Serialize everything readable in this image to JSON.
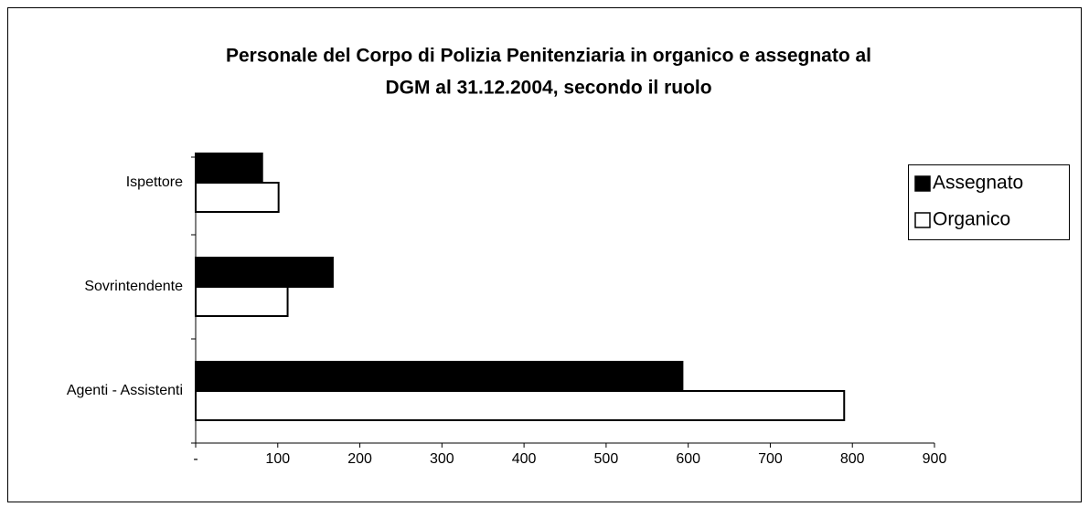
{
  "chart_data": {
    "type": "barh",
    "title": [
      "Personale del Corpo di Polizia Penitenziaria in organico e assegnato al",
      "DGM al 31.12.2004, secondo il ruolo"
    ],
    "categories": [
      "Ispettore",
      "Sovrintendente",
      "Agenti - Assistenti"
    ],
    "series": [
      {
        "name": "Assegnato",
        "color": "#000000",
        "values": [
          81,
          167,
          593
        ]
      },
      {
        "name": "Organico",
        "color": "#ffffff",
        "values": [
          101,
          112,
          790
        ]
      }
    ],
    "xlim": [
      0,
      900
    ],
    "xticks": [
      {
        "value": 0,
        "label": "-"
      },
      100,
      200,
      300,
      400,
      500,
      600,
      700,
      800,
      900
    ],
    "legend": "right"
  }
}
